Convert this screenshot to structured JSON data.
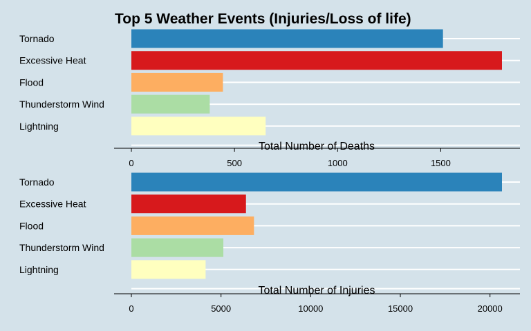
{
  "title": "Top 5 Weather Events (Injuries/Loss of life)",
  "colors": {
    "background": "#d4e2ea",
    "grid": "#ffffff"
  },
  "chart_data": [
    {
      "type": "bar",
      "orientation": "horizontal",
      "categories": [
        "Tornado",
        "Excessive Heat",
        "Flood",
        "Thunderstorm Wind",
        "Lightning"
      ],
      "values": [
        1511,
        1797,
        444,
        380,
        651
      ],
      "colors": [
        "#2b83ba",
        "#d7191c",
        "#fdae61",
        "#abdda4",
        "#ffffbf"
      ],
      "xlabel": "Total Number of Deaths",
      "xticks": [
        0,
        500,
        1000,
        1500
      ],
      "xlim": [
        0,
        1886
      ],
      "grid": true
    },
    {
      "type": "bar",
      "orientation": "horizontal",
      "categories": [
        "Tornado",
        "Excessive Heat",
        "Flood",
        "Thunderstorm Wind",
        "Lightning"
      ],
      "values": [
        20667,
        6391,
        6838,
        5129,
        4140
      ],
      "colors": [
        "#2b83ba",
        "#d7191c",
        "#fdae61",
        "#abdda4",
        "#ffffbf"
      ],
      "xlabel": "Total Number of Injuries",
      "xticks": [
        0,
        5000,
        10000,
        15000,
        20000
      ],
      "xlim": [
        0,
        21700
      ],
      "grid": true
    }
  ]
}
